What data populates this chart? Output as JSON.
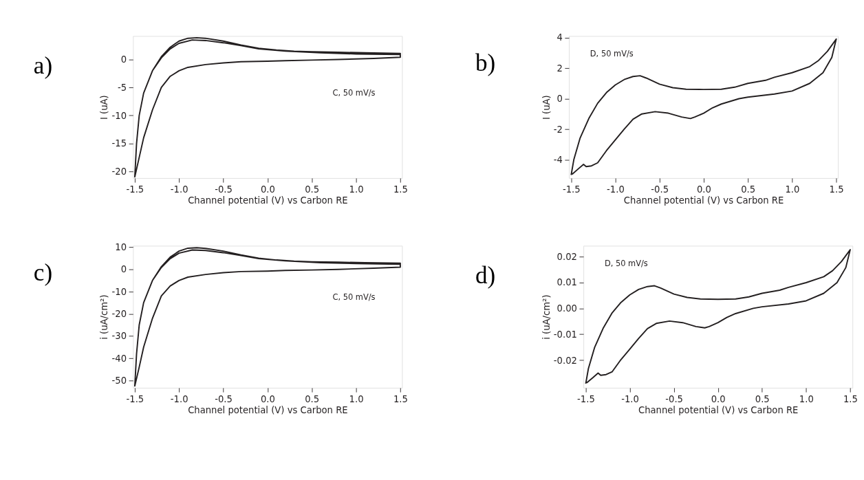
{
  "chart_data": [
    {
      "type": "line",
      "title": "a)",
      "xlabel": "Channel potential (V) vs Carbon RE",
      "ylabel": "I (uA)",
      "annotations": [
        "C, 50 mV/s"
      ],
      "grid": false,
      "xlim": [
        -1.52,
        1.52
      ],
      "ylim": [
        -21.2,
        4.2
      ],
      "xticks": [
        -1.5,
        {
          "value": -1,
          "label": "-1.0"
        },
        -0.5,
        {
          "value": 0,
          "label": "0.0"
        },
        0.5,
        {
          "value": 1,
          "label": "1.0"
        },
        1.5
      ],
      "yticks": [
        -20,
        -15,
        -10,
        -5,
        0
      ],
      "series": [
        {
          "color": "#231f20",
          "x": [
            -1.5,
            -1.48,
            -1.45,
            -1.4,
            -1.3,
            -1.2,
            -1.1,
            -1.0,
            -0.9,
            -0.8,
            -0.7,
            -0.5,
            -0.3,
            -0.1,
            0.1,
            0.3,
            0.5,
            0.8,
            1.1,
            1.5,
            1.5,
            1.2,
            0.8,
            0.5,
            0.2,
            0.0,
            -0.3,
            -0.5,
            -0.7,
            -0.9,
            -1.0,
            -1.1,
            -1.2,
            -1.3,
            -1.4,
            -1.45,
            -1.5,
            -1.48,
            -1.45,
            -1.4,
            -1.3,
            -1.2,
            -1.1,
            -1.0,
            -0.85,
            -0.7,
            -0.5,
            -0.3,
            -0.1,
            0.2,
            0.6,
            1.0,
            1.5
          ],
          "values": [
            -21,
            -15,
            -10,
            -6,
            -2,
            0.5,
            2.2,
            3.3,
            3.8,
            3.9,
            3.8,
            3.3,
            2.6,
            2.0,
            1.7,
            1.5,
            1.4,
            1.3,
            1.2,
            1.1,
            0.4,
            0.2,
            0.0,
            -0.1,
            -0.2,
            -0.3,
            -0.4,
            -0.6,
            -0.9,
            -1.4,
            -2.0,
            -3.0,
            -5,
            -9,
            -14,
            -17.5,
            -21,
            -15,
            -10,
            -6,
            -2,
            0.3,
            1.9,
            2.9,
            3.5,
            3.4,
            3.0,
            2.5,
            1.9,
            1.5,
            1.2,
            1.0,
            0.9
          ]
        }
      ]
    },
    {
      "type": "line",
      "title": "b)",
      "xlabel": "Channel potential (V) vs Carbon RE",
      "ylabel": "I (uA)",
      "annotations": [
        "D, 50 mV/s"
      ],
      "grid": false,
      "xlim": [
        -1.525,
        1.52
      ],
      "ylim": [
        -5.2,
        4.1
      ],
      "xticks": [
        -1.5,
        {
          "value": -1,
          "label": "-1.0"
        },
        -0.5,
        {
          "value": 0,
          "label": "0.0"
        },
        0.5,
        {
          "value": 1,
          "label": "1.0"
        },
        1.5
      ],
      "yticks": [
        -4,
        -2,
        0,
        2,
        4
      ],
      "series": [
        {
          "color": "#231f20",
          "x": [
            -1.5,
            -1.47,
            -1.4,
            -1.3,
            -1.2,
            -1.1,
            -1.0,
            -0.9,
            -0.8,
            -0.72,
            -0.65,
            -0.5,
            -0.35,
            -0.2,
            0.0,
            0.2,
            0.35,
            0.5,
            0.7,
            0.8,
            1.0,
            1.2,
            1.3,
            1.4,
            1.5,
            1.45,
            1.35,
            1.2,
            1.0,
            0.8,
            0.5,
            0.4,
            0.2,
            0.1,
            0.0,
            -0.1,
            -0.15,
            -0.25,
            -0.4,
            -0.55,
            -0.7,
            -0.8,
            -0.9,
            -1.0,
            -1.1,
            -1.2,
            -1.27,
            -1.33,
            -1.36,
            -1.42,
            -1.49
          ],
          "values": [
            -5.0,
            -4.0,
            -2.6,
            -1.3,
            -0.3,
            0.4,
            0.9,
            1.25,
            1.45,
            1.5,
            1.35,
            0.95,
            0.72,
            0.62,
            0.6,
            0.62,
            0.75,
            1.0,
            1.2,
            1.4,
            1.7,
            2.1,
            2.5,
            3.1,
            3.9,
            2.7,
            1.7,
            1.0,
            0.5,
            0.3,
            0.1,
            0.0,
            -0.35,
            -0.6,
            -0.95,
            -1.2,
            -1.3,
            -1.2,
            -0.95,
            -0.85,
            -1.0,
            -1.35,
            -2.0,
            -2.7,
            -3.4,
            -4.2,
            -4.4,
            -4.45,
            -4.3,
            -4.6,
            -4.95
          ]
        }
      ]
    },
    {
      "type": "line",
      "title": "c)",
      "xlabel": "Channel potential (V) vs Carbon RE",
      "ylabel": "i (uA/cm²)",
      "annotations": [
        "C, 50 mV/s"
      ],
      "grid": false,
      "xlim": [
        -1.52,
        1.52
      ],
      "ylim": [
        -53.3,
        10.6
      ],
      "xticks": [
        -1.5,
        {
          "value": -1,
          "label": "-1.0"
        },
        -0.5,
        {
          "value": 0,
          "label": "0.0"
        },
        0.5,
        {
          "value": 1,
          "label": "1.0"
        },
        1.5
      ],
      "yticks": [
        -50,
        -40,
        -30,
        -20,
        -10,
        0,
        10
      ],
      "series": [
        {
          "color": "#231f20",
          "x": [
            -1.5,
            -1.48,
            -1.45,
            -1.4,
            -1.3,
            -1.2,
            -1.1,
            -1.0,
            -0.9,
            -0.8,
            -0.7,
            -0.5,
            -0.3,
            -0.1,
            0.1,
            0.3,
            0.5,
            0.8,
            1.1,
            1.5,
            1.5,
            1.2,
            0.8,
            0.5,
            0.2,
            0.0,
            -0.3,
            -0.5,
            -0.7,
            -0.9,
            -1.0,
            -1.1,
            -1.2,
            -1.3,
            -1.4,
            -1.45,
            -1.5,
            -1.48,
            -1.45,
            -1.4,
            -1.3,
            -1.2,
            -1.1,
            -1.0,
            -0.85,
            -0.7,
            -0.5,
            -0.3,
            -0.1,
            0.2,
            0.6,
            1.0,
            1.5
          ],
          "values": [
            -52.5,
            -38,
            -25,
            -15,
            -5,
            1.2,
            5.5,
            8.2,
            9.5,
            9.7,
            9.4,
            8.2,
            6.5,
            5.0,
            4.2,
            3.7,
            3.4,
            3.2,
            3.0,
            2.8,
            1.0,
            0.5,
            0.0,
            -0.3,
            -0.5,
            -0.8,
            -1.0,
            -1.5,
            -2.3,
            -3.5,
            -5.0,
            -7.5,
            -12,
            -22,
            -35,
            -44,
            -52.5,
            -38,
            -25,
            -15,
            -5,
            0.8,
            4.8,
            7.3,
            8.7,
            8.5,
            7.5,
            6.2,
            4.8,
            3.8,
            3.0,
            2.6,
            2.3
          ]
        }
      ]
    },
    {
      "type": "line",
      "title": "d)",
      "xlabel": "Channel potential (V) vs Carbon RE",
      "ylabel": "i (uA/cm²)",
      "annotations": [
        "D, 50 mV/s"
      ],
      "grid": false,
      "xlim": [
        -1.526,
        1.526
      ],
      "ylim": [
        -0.0306,
        0.0241
      ],
      "xticks": [
        -1.5,
        {
          "value": -1,
          "label": "-1.0"
        },
        -0.5,
        {
          "value": 0,
          "label": "0.0"
        },
        0.5,
        {
          "value": 1,
          "label": "1.0"
        },
        1.5
      ],
      "yticks": [
        -0.02,
        -0.01,
        {
          "value": 0,
          "label": "0.00"
        },
        0.01,
        0.02
      ],
      "series": [
        {
          "color": "#231f20",
          "x": [
            -1.5,
            -1.47,
            -1.4,
            -1.3,
            -1.2,
            -1.1,
            -1.0,
            -0.9,
            -0.8,
            -0.72,
            -0.65,
            -0.5,
            -0.35,
            -0.2,
            0.0,
            0.2,
            0.35,
            0.5,
            0.7,
            0.8,
            1.0,
            1.2,
            1.3,
            1.4,
            1.5,
            1.45,
            1.35,
            1.2,
            1.0,
            0.8,
            0.5,
            0.4,
            0.2,
            0.1,
            0.0,
            -0.1,
            -0.15,
            -0.25,
            -0.4,
            -0.55,
            -0.7,
            -0.8,
            -0.9,
            -1.0,
            -1.1,
            -1.2,
            -1.27,
            -1.33,
            -1.36,
            -1.42,
            -1.49
          ],
          "values": [
            -0.029,
            -0.0232,
            -0.0151,
            -0.0075,
            -0.0017,
            0.0023,
            0.0052,
            0.0073,
            0.0084,
            0.0087,
            0.0078,
            0.0055,
            0.0042,
            0.0036,
            0.0035,
            0.0036,
            0.0044,
            0.0058,
            0.007,
            0.0081,
            0.0099,
            0.0122,
            0.0145,
            0.018,
            0.0226,
            0.0157,
            0.0099,
            0.0058,
            0.0029,
            0.0017,
            0.0006,
            0.0,
            -0.002,
            -0.0035,
            -0.0055,
            -0.007,
            -0.0075,
            -0.007,
            -0.0055,
            -0.0049,
            -0.0058,
            -0.0078,
            -0.0116,
            -0.0157,
            -0.0197,
            -0.0244,
            -0.0255,
            -0.0258,
            -0.0249,
            -0.0267,
            -0.0287
          ]
        }
      ]
    }
  ]
}
